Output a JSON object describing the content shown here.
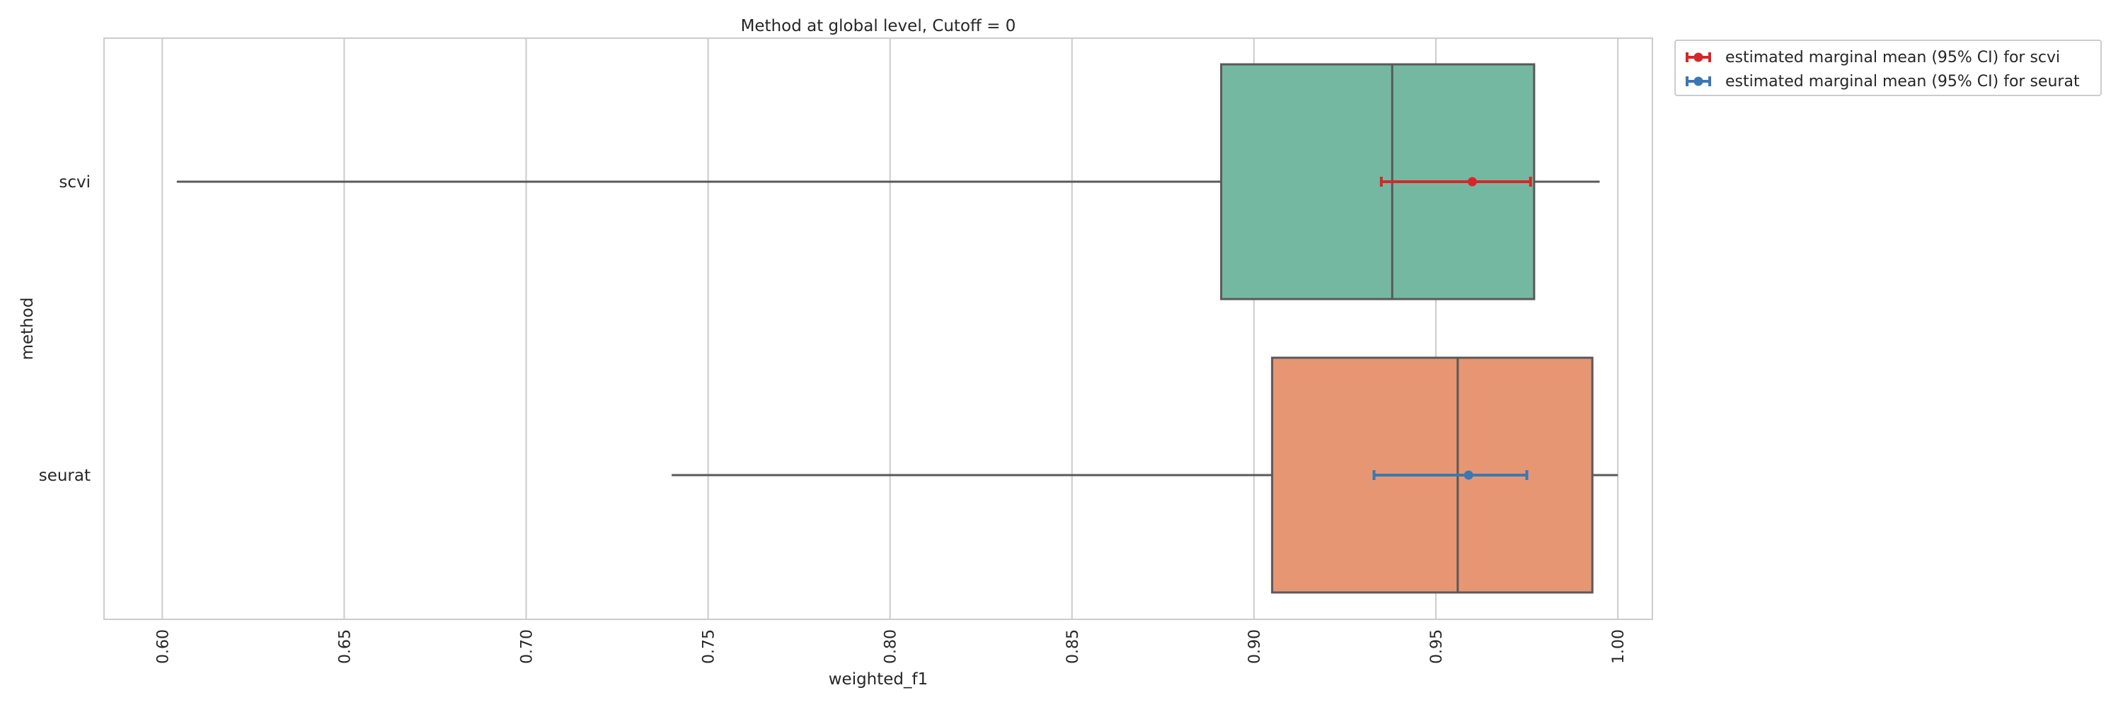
{
  "chart_data": {
    "type": "box",
    "title": "Method at global level, Cutoff = 0",
    "xlabel": "weighted_f1",
    "ylabel": "method",
    "xlim": [
      0.584,
      1.0095
    ],
    "xticks": [
      0.6,
      0.65,
      0.7,
      0.75,
      0.8,
      0.85,
      0.9,
      0.95,
      1.0
    ],
    "xtick_labels": [
      "0.60",
      "0.65",
      "0.70",
      "0.75",
      "0.80",
      "0.85",
      "0.90",
      "0.95",
      "1.00"
    ],
    "grid": "x",
    "categories": [
      "scvi",
      "seurat"
    ],
    "boxes": [
      {
        "category": "scvi",
        "whisker_low": 0.604,
        "q1": 0.891,
        "median": 0.938,
        "q3": 0.977,
        "whisker_high": 0.995,
        "color": "#75b8a2"
      },
      {
        "category": "seurat",
        "whisker_low": 0.74,
        "q1": 0.905,
        "median": 0.956,
        "q3": 0.993,
        "whisker_high": 1.0,
        "color": "#e79673"
      }
    ],
    "series": [
      {
        "name": "estimated marginal mean (95% CI) for scvi",
        "category": "scvi",
        "mean": 0.96,
        "ci": [
          0.935,
          0.976
        ],
        "color": "#d62728"
      },
      {
        "name": "estimated marginal mean (95% CI) for seurat",
        "category": "seurat",
        "mean": 0.959,
        "ci": [
          0.933,
          0.975
        ],
        "color": "#3a78b4"
      }
    ],
    "legend_position": "outside top-right",
    "box_edge_color": "#595959"
  }
}
